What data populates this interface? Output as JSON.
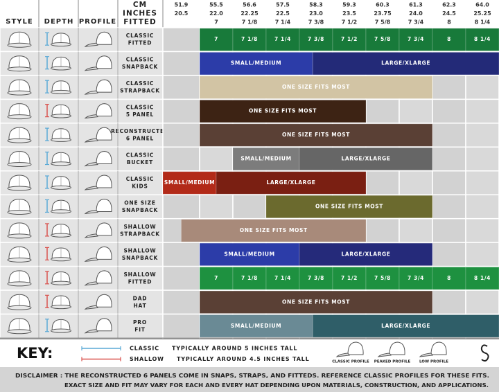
{
  "header": {
    "style": "STYLE",
    "depth": "DEPTH",
    "profile": "PROFILE",
    "cm_label": "CM",
    "inches_label": "INCHES",
    "fitted_label": "FITTED"
  },
  "sizes": {
    "cm": [
      "51.9",
      "55.5",
      "56.6",
      "57.5",
      "58.3",
      "59.3",
      "60.3",
      "61.3",
      "62.3",
      "64.0"
    ],
    "inches": [
      "20.5",
      "22.0",
      "22.25",
      "22.5",
      "23.0",
      "23.5",
      "23.75",
      "24.0",
      "24.5",
      "25.25"
    ],
    "fitted": [
      null,
      "7",
      "7 1/8",
      "7 1/4",
      "7 3/8",
      "7 1/2",
      "7 5/8",
      "7 3/4",
      "8",
      "8 1/4"
    ]
  },
  "rows": [
    {
      "name": [
        "CLASSIC",
        "FITTED"
      ],
      "depth_color": "#5aa9d6",
      "segments": [
        {
          "label": "7",
          "from": 1,
          "to": 2,
          "color": "#187a3a"
        },
        {
          "label": "7 1/8",
          "from": 2,
          "to": 3,
          "color": "#187a3a"
        },
        {
          "label": "7 1/4",
          "from": 3,
          "to": 4,
          "color": "#187a3a"
        },
        {
          "label": "7 3/8",
          "from": 4,
          "to": 5,
          "color": "#187a3a"
        },
        {
          "label": "7 1/2",
          "from": 5,
          "to": 6,
          "color": "#187a3a"
        },
        {
          "label": "7 5/8",
          "from": 6,
          "to": 7,
          "color": "#187a3a"
        },
        {
          "label": "7 3/4",
          "from": 7,
          "to": 8,
          "color": "#187a3a"
        },
        {
          "label": "8",
          "from": 8,
          "to": 9,
          "color": "#187a3a"
        },
        {
          "label": "8 1/4",
          "from": 9,
          "to": 10,
          "color": "#187a3a"
        }
      ]
    },
    {
      "name": [
        "CLASSIC",
        "SNAPBACK"
      ],
      "depth_color": "#5aa9d6",
      "segments": [
        {
          "label": "SMALL/MEDIUM",
          "from": 1,
          "to": 4.4,
          "color": "#2c3ca8"
        },
        {
          "label": "LARGE/XLARGE",
          "from": 4.4,
          "to": 10,
          "color": "#232a78"
        }
      ]
    },
    {
      "name": [
        "CLASSIC",
        "STRAPBACK"
      ],
      "depth_color": "#5aa9d6",
      "segments": [
        {
          "label": "ONE SIZE FITS MOST",
          "from": 1,
          "to": 8,
          "color": "#d2c4a4"
        }
      ]
    },
    {
      "name": [
        "CLASSIC",
        "5 PANEL"
      ],
      "depth_color": "#d9534f",
      "segments": [
        {
          "label": "ONE SIZE FITS MOST",
          "from": 1,
          "to": 6,
          "color": "#3d2314"
        }
      ]
    },
    {
      "name": [
        "RECONSTRUCTED",
        "6 PANEL"
      ],
      "depth_color": "#5aa9d6",
      "segments": [
        {
          "label": "ONE SIZE FITS MOST",
          "from": 1,
          "to": 8,
          "color": "#5a4035"
        }
      ]
    },
    {
      "name": [
        "CLASSIC",
        "BUCKET"
      ],
      "depth_color": "#5aa9d6",
      "segments": [
        {
          "label": "SMALL/MEDIUM",
          "from": 2,
          "to": 4,
          "color": "#7c7c7c"
        },
        {
          "label": "LARGE/XLARGE",
          "from": 4,
          "to": 8,
          "color": "#666666"
        }
      ]
    },
    {
      "name": [
        "CLASSIC",
        "KIDS"
      ],
      "depth_color": "#5aa9d6",
      "segments": [
        {
          "label": "SMALL/MEDIUM",
          "from": 0,
          "to": 1.5,
          "color": "#b22a18"
        },
        {
          "label": "LARGE/XLARGE",
          "from": 1.5,
          "to": 6,
          "color": "#7a1f12"
        }
      ]
    },
    {
      "name": [
        "ONE SIZE",
        "SNAPBACK"
      ],
      "depth_color": "#5aa9d6",
      "segments": [
        {
          "label": "ONE SIZE FITS MOST",
          "from": 3,
          "to": 8,
          "color": "#6b6a2e"
        }
      ]
    },
    {
      "name": [
        "SHALLOW",
        "STRAPBACK"
      ],
      "depth_color": "#d9534f",
      "segments": [
        {
          "label": "ONE SIZE FITS MOST",
          "from": 0.5,
          "to": 6,
          "color": "#a88a7a"
        }
      ]
    },
    {
      "name": [
        "SHALLOW",
        "SNAPBACK"
      ],
      "depth_color": "#d9534f",
      "segments": [
        {
          "label": "SMALL/MEDIUM",
          "from": 1,
          "to": 4,
          "color": "#2c3ca8"
        },
        {
          "label": "LARGE/XLARGE",
          "from": 4,
          "to": 8,
          "color": "#252a7a"
        }
      ]
    },
    {
      "name": [
        "SHALLOW",
        "FITTED"
      ],
      "depth_color": "#d9534f",
      "segments": [
        {
          "label": "7",
          "from": 1,
          "to": 2,
          "color": "#1e9140"
        },
        {
          "label": "7 1/8",
          "from": 2,
          "to": 3,
          "color": "#1e9140"
        },
        {
          "label": "7 1/4",
          "from": 3,
          "to": 4,
          "color": "#1e9140"
        },
        {
          "label": "7 3/8",
          "from": 4,
          "to": 5,
          "color": "#1e9140"
        },
        {
          "label": "7 1/2",
          "from": 5,
          "to": 6,
          "color": "#1e9140"
        },
        {
          "label": "7 5/8",
          "from": 6,
          "to": 7,
          "color": "#1e9140"
        },
        {
          "label": "7 3/4",
          "from": 7,
          "to": 8,
          "color": "#1e9140"
        },
        {
          "label": "8",
          "from": 8,
          "to": 9,
          "color": "#1e9140"
        },
        {
          "label": "8 1/4",
          "from": 9,
          "to": 10,
          "color": "#1e9140"
        }
      ]
    },
    {
      "name": [
        "DAD",
        "HAT"
      ],
      "depth_color": "#d9534f",
      "segments": [
        {
          "label": "ONE SIZE FITS MOST",
          "from": 1,
          "to": 8,
          "color": "#5a4035"
        }
      ]
    },
    {
      "name": [
        "PRO",
        "FIT"
      ],
      "depth_color": "#5aa9d6",
      "segments": [
        {
          "label": "SMALL/MEDIUM",
          "from": 1,
          "to": 4.4,
          "color": "#6a8a95"
        },
        {
          "label": "LARGE/XLARGE",
          "from": 4.4,
          "to": 10,
          "color": "#2f5e68"
        }
      ]
    }
  ],
  "key": {
    "title": "KEY:",
    "items": [
      {
        "name": "CLASSIC",
        "text": "TYPICALLY AROUND 5 INCHES TALL",
        "color": "#5aa9d6"
      },
      {
        "name": "SHALLOW",
        "text": "TYPICALLY AROUND 4.5 INCHES TALL",
        "color": "#d9534f"
      }
    ],
    "profiles": [
      "CLASSIC PROFILE",
      "PEAKED PROFILE",
      "LOW PROFILE"
    ]
  },
  "disclaimer": [
    "DISCLAIMER : THE RECONSTRUCTED 6 PANELS COME IN SNAPS, STRAPS, AND FITTEDS. REFERENCE CLASSIC PROFILES FOR THESE FITS.",
    "EXACT SIZE AND FIT MAY VARY FOR EACH AND EVERY HAT DEPENDING UPON MATERIALS, CONSTRUCTION, AND APPLICATIONS."
  ]
}
